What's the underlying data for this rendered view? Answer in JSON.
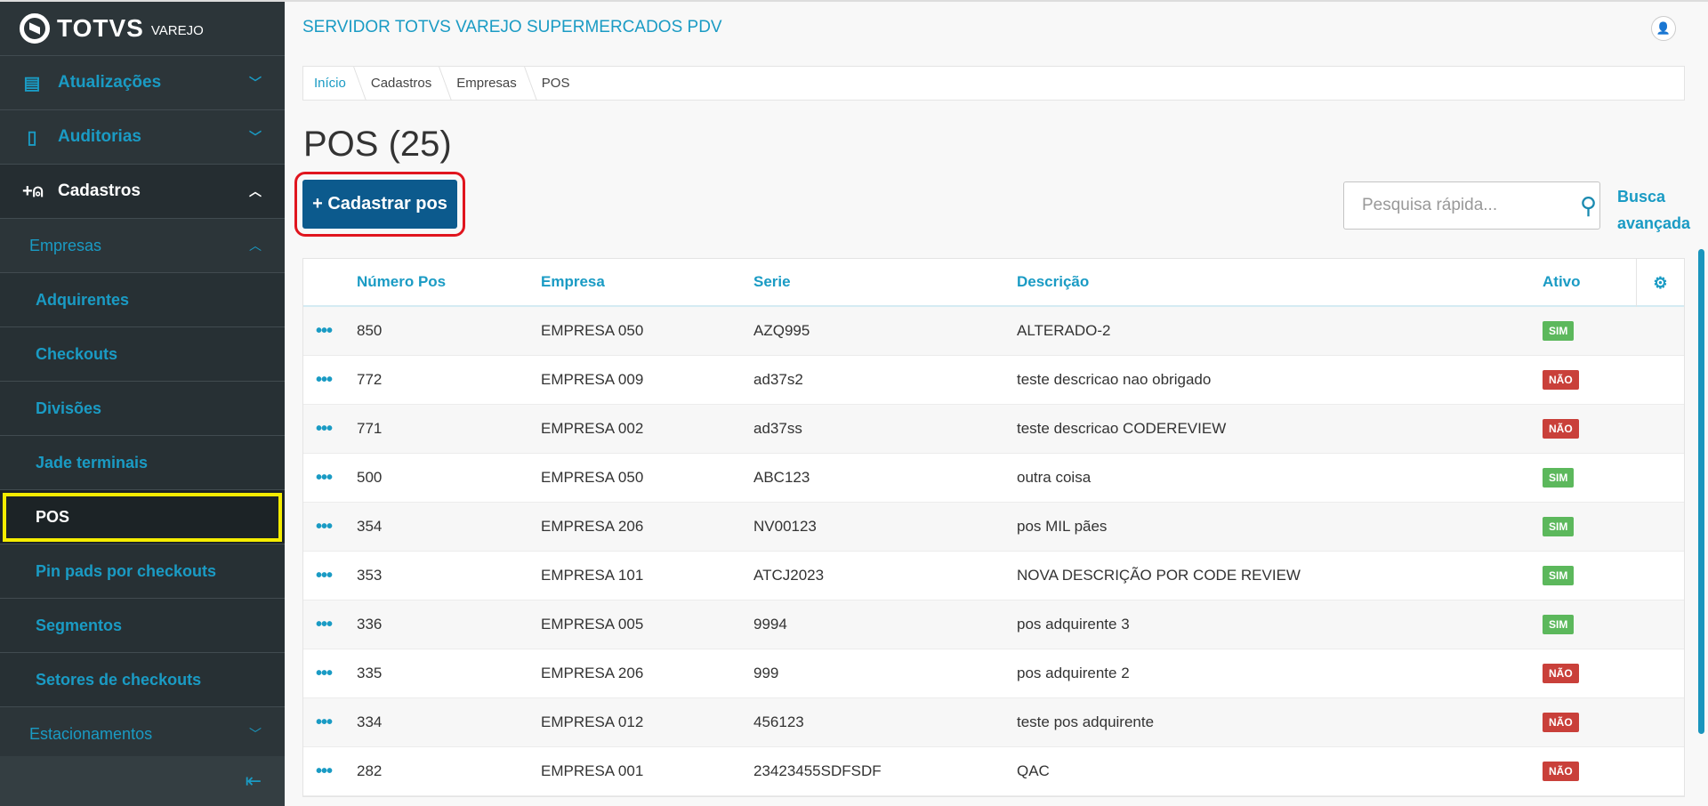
{
  "brand": {
    "name": "TOTVS",
    "product": "VAREJO"
  },
  "sidebar": {
    "items": [
      {
        "label": "Atualizações",
        "icon": "server-icon",
        "state": "collapsed"
      },
      {
        "label": "Auditorias",
        "icon": "book-icon",
        "state": "collapsed"
      },
      {
        "label": "Cadastros",
        "icon": "add-user-icon",
        "state": "expanded"
      },
      {
        "label": "Empresas",
        "state": "expanded"
      },
      {
        "label": "Adquirentes"
      },
      {
        "label": "Checkouts"
      },
      {
        "label": "Divisões"
      },
      {
        "label": "Jade terminais"
      },
      {
        "label": "POS",
        "active": true
      },
      {
        "label": "Pin pads por checkouts"
      },
      {
        "label": "Segmentos"
      },
      {
        "label": "Setores de checkouts"
      },
      {
        "label": "Estacionamentos",
        "state": "collapsed"
      }
    ]
  },
  "header": {
    "title": "SERVIDOR TOTVS VAREJO SUPERMERCADOS PDV"
  },
  "breadcrumb": [
    "Início",
    "Cadastros",
    "Empresas",
    "POS"
  ],
  "page": {
    "title": "POS (25)",
    "add_label": "+  Cadastrar pos",
    "search_placeholder": "Pesquisa rápida...",
    "advanced_line1": "Busca",
    "advanced_line2": "avançada"
  },
  "colors": {
    "accent": "#1a9bc4",
    "primary_button": "#0c5a8d",
    "sim": "#5cb85c",
    "nao": "#c9403a"
  },
  "table": {
    "columns": [
      "Número Pos",
      "Empresa",
      "Serie",
      "Descrição",
      "Ativo"
    ],
    "rows": [
      [
        "850",
        "EMPRESA 050",
        "AZQ995",
        "ALTERADO-2",
        "SIM"
      ],
      [
        "772",
        "EMPRESA 009",
        "ad37s2",
        "teste descricao nao obrigado",
        "NÃO"
      ],
      [
        "771",
        "EMPRESA 002",
        "ad37ss",
        "teste descricao CODEREVIEW",
        "NÃO"
      ],
      [
        "500",
        "EMPRESA 050",
        "ABC123",
        "outra coisa",
        "SIM"
      ],
      [
        "354",
        "EMPRESA 206",
        "NV00123",
        "pos MIL pães",
        "SIM"
      ],
      [
        "353",
        "EMPRESA 101",
        "ATCJ2023",
        "NOVA DESCRIÇÃO POR CODE REVIEW",
        "SIM"
      ],
      [
        "336",
        "EMPRESA 005",
        "9994",
        "pos adquirente 3",
        "SIM"
      ],
      [
        "335",
        "EMPRESA 206",
        "999",
        "pos adquirente 2",
        "NÃO"
      ],
      [
        "334",
        "EMPRESA 012",
        "456123",
        "teste pos adquirente",
        "NÃO"
      ],
      [
        "282",
        "EMPRESA 001",
        "23423455SDFSDF",
        "QAC",
        "NÃO"
      ]
    ]
  }
}
